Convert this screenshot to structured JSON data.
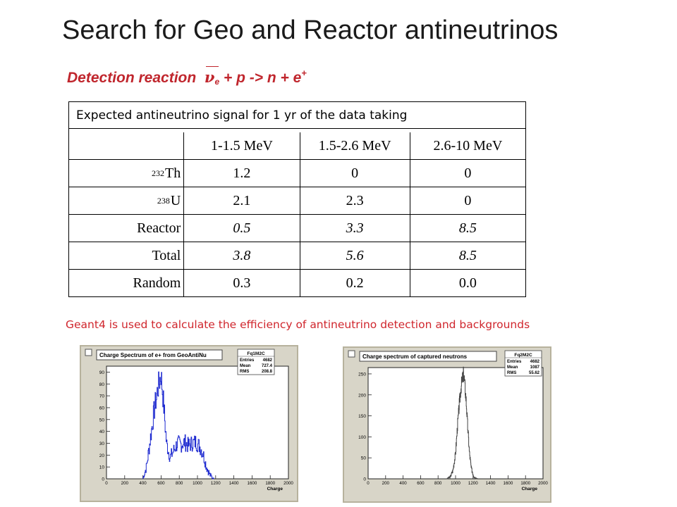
{
  "title": "Search for Geo and Reactor antineutrinos",
  "reaction": {
    "label": "Detection reaction",
    "nu": "ν",
    "nu_sub": "e",
    "rest": " + p -> n + e",
    "sup": "+"
  },
  "table": {
    "caption": "Expected antineutrino signal for 1 yr of the data taking",
    "columns": [
      "",
      "1-1.5 MeV",
      "1.5-2.6 MeV",
      "2.6-10 MeV"
    ],
    "rows": [
      {
        "mass": "232",
        "label": "Th",
        "values": [
          "1.2",
          "0",
          "0"
        ]
      },
      {
        "mass": "238",
        "label": "U",
        "values": [
          "2.1",
          "2.3",
          "0"
        ]
      },
      {
        "mass": "",
        "label": "Reactor",
        "values": [
          "0.5",
          "3.3",
          "8.5"
        ]
      },
      {
        "mass": "",
        "label": "Total",
        "values": [
          "3.8",
          "5.6",
          "8.5"
        ]
      },
      {
        "mass": "",
        "label": "Random",
        "values": [
          "0.3",
          "0.2",
          "0.0"
        ]
      }
    ]
  },
  "note": "Geant4 is used  to calculate the efficiency of antineutrino detection and backgrounds",
  "colors": {
    "accent": "#c0262d",
    "plot_bg": "#d8d5c8",
    "hist1": "#1f2bd0",
    "hist2": "#444444"
  },
  "chart_data": [
    {
      "type": "histogram",
      "title": "Charge Spectrum of e+ from GeoAntiNu",
      "stats_title": "Fq1M2C",
      "stats": [
        [
          "Entries",
          "4682"
        ],
        [
          "Mean",
          "727.4"
        ],
        [
          "RMS",
          "208.8"
        ]
      ],
      "xlabel": "Charge",
      "xlim": [
        0,
        2000
      ],
      "ylim": [
        0,
        95
      ],
      "xticks": [
        0,
        200,
        400,
        600,
        800,
        1000,
        1200,
        1400,
        1600,
        1800,
        2000
      ],
      "yticks": [
        0,
        10,
        20,
        30,
        40,
        50,
        60,
        70,
        80,
        90
      ],
      "x": [
        400,
        440,
        480,
        520,
        560,
        600,
        630,
        660,
        700,
        740,
        780,
        820,
        860,
        900,
        940,
        980,
        1020,
        1060,
        1100,
        1140,
        1180
      ],
      "values": [
        0,
        10,
        32,
        55,
        74,
        88,
        62,
        30,
        18,
        24,
        30,
        29,
        31,
        28,
        30,
        31,
        28,
        22,
        10,
        3,
        0
      ]
    },
    {
      "type": "histogram",
      "title": "Charge spectrum of captured neutrons",
      "stats_title": "Fq2M2C",
      "stats": [
        [
          "Entries",
          "4682"
        ],
        [
          "Mean",
          "1087"
        ],
        [
          "RMS",
          "55.62"
        ]
      ],
      "xlabel": "Charge",
      "xlim": [
        0,
        2000
      ],
      "ylim": [
        0,
        265
      ],
      "xticks": [
        0,
        200,
        400,
        600,
        800,
        1000,
        1200,
        1400,
        1600,
        1800,
        2000
      ],
      "yticks": [
        0,
        50,
        100,
        150,
        200,
        250
      ],
      "x": [
        900,
        940,
        970,
        1000,
        1020,
        1040,
        1060,
        1080,
        1090,
        1100,
        1120,
        1140,
        1160,
        1180,
        1210,
        1250
      ],
      "values": [
        0,
        5,
        20,
        60,
        120,
        170,
        215,
        240,
        250,
        238,
        190,
        120,
        60,
        25,
        5,
        0
      ]
    }
  ]
}
